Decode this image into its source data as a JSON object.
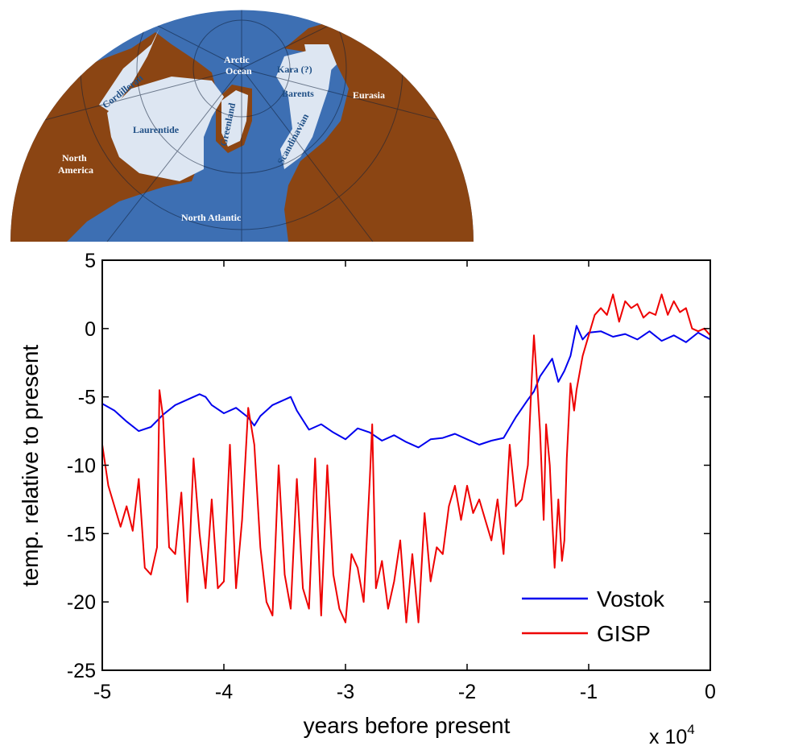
{
  "map": {
    "ocean_color": "#3d6fb3",
    "land_color": "#8b4513",
    "ice_color": "#dde6f2",
    "labels": {
      "arctic": "Arctic",
      "ocean": "Ocean",
      "kara": "Kara (?)",
      "barents": "Barents",
      "eurasia": "Eurasia",
      "cordilleran": "Cordilleran",
      "laurentide": "Laurentide",
      "greenland": "Greenland",
      "scandinavian": "Scandinavian",
      "north": "North",
      "america": "America",
      "north_atlantic": "North Atlantic"
    }
  },
  "chart_data": {
    "type": "line",
    "xlabel": "years before present",
    "ylabel": "temp. relative to present",
    "x_multiplier": "x 10",
    "x_multiplier_exp": "4",
    "xlim": [
      -5,
      0
    ],
    "ylim": [
      -25,
      5
    ],
    "xticks": [
      -5,
      -4,
      -3,
      -2,
      -1,
      0
    ],
    "yticks": [
      5,
      0,
      -5,
      -10,
      -15,
      -20,
      -25
    ],
    "legend_position": "lower-right",
    "series": [
      {
        "name": "Vostok",
        "color": "#0000ee",
        "x": [
          -5.0,
          -4.9,
          -4.8,
          -4.7,
          -4.6,
          -4.5,
          -4.4,
          -4.3,
          -4.2,
          -4.15,
          -4.1,
          -4.0,
          -3.9,
          -3.8,
          -3.75,
          -3.7,
          -3.6,
          -3.5,
          -3.45,
          -3.4,
          -3.3,
          -3.2,
          -3.1,
          -3.0,
          -2.9,
          -2.8,
          -2.7,
          -2.6,
          -2.5,
          -2.4,
          -2.3,
          -2.2,
          -2.1,
          -2.0,
          -1.9,
          -1.8,
          -1.7,
          -1.6,
          -1.5,
          -1.45,
          -1.4,
          -1.3,
          -1.25,
          -1.2,
          -1.15,
          -1.1,
          -1.05,
          -1.0,
          -0.9,
          -0.8,
          -0.7,
          -0.6,
          -0.5,
          -0.4,
          -0.3,
          -0.2,
          -0.1,
          0.0
        ],
        "y": [
          -5.5,
          -6.0,
          -6.8,
          -7.5,
          -7.2,
          -6.3,
          -5.6,
          -5.2,
          -4.8,
          -5.0,
          -5.6,
          -6.2,
          -5.8,
          -6.5,
          -7.1,
          -6.4,
          -5.6,
          -5.2,
          -5.0,
          -6.0,
          -7.4,
          -7.0,
          -7.6,
          -8.1,
          -7.3,
          -7.6,
          -8.2,
          -7.8,
          -8.3,
          -8.7,
          -8.1,
          -8.0,
          -7.7,
          -8.1,
          -8.5,
          -8.2,
          -8.0,
          -6.5,
          -5.2,
          -4.6,
          -3.5,
          -2.2,
          -3.9,
          -3.1,
          -2.0,
          0.2,
          -0.8,
          -0.3,
          -0.2,
          -0.6,
          -0.4,
          -0.8,
          -0.2,
          -0.9,
          -0.5,
          -1.0,
          -0.3,
          -0.8
        ]
      },
      {
        "name": "GISP",
        "color": "#ee0000",
        "x": [
          -5.0,
          -4.95,
          -4.9,
          -4.85,
          -4.8,
          -4.75,
          -4.7,
          -4.65,
          -4.6,
          -4.55,
          -4.53,
          -4.5,
          -4.45,
          -4.4,
          -4.35,
          -4.3,
          -4.25,
          -4.2,
          -4.15,
          -4.1,
          -4.05,
          -4.0,
          -3.95,
          -3.9,
          -3.85,
          -3.8,
          -3.75,
          -3.7,
          -3.65,
          -3.6,
          -3.55,
          -3.5,
          -3.45,
          -3.4,
          -3.35,
          -3.3,
          -3.25,
          -3.2,
          -3.15,
          -3.1,
          -3.05,
          -3.0,
          -2.95,
          -2.9,
          -2.85,
          -2.8,
          -2.78,
          -2.75,
          -2.7,
          -2.65,
          -2.6,
          -2.55,
          -2.5,
          -2.45,
          -2.4,
          -2.35,
          -2.3,
          -2.25,
          -2.2,
          -2.15,
          -2.1,
          -2.05,
          -2.0,
          -1.95,
          -1.9,
          -1.85,
          -1.8,
          -1.75,
          -1.7,
          -1.65,
          -1.6,
          -1.55,
          -1.5,
          -1.47,
          -1.45,
          -1.42,
          -1.4,
          -1.37,
          -1.35,
          -1.32,
          -1.3,
          -1.28,
          -1.25,
          -1.22,
          -1.2,
          -1.18,
          -1.15,
          -1.12,
          -1.1,
          -1.05,
          -1.0,
          -0.95,
          -0.9,
          -0.85,
          -0.8,
          -0.75,
          -0.7,
          -0.65,
          -0.6,
          -0.55,
          -0.5,
          -0.45,
          -0.4,
          -0.35,
          -0.3,
          -0.25,
          -0.2,
          -0.15,
          -0.1,
          -0.05,
          0.0
        ],
        "y": [
          -8.5,
          -11.5,
          -13.0,
          -14.5,
          -13.0,
          -14.8,
          -11.0,
          -17.5,
          -18.0,
          -16.0,
          -4.5,
          -6.5,
          -16.0,
          -16.5,
          -12.0,
          -20.0,
          -9.5,
          -15.0,
          -19.0,
          -12.5,
          -19.0,
          -18.5,
          -8.5,
          -19.0,
          -14.0,
          -5.8,
          -8.5,
          -16.0,
          -20.0,
          -21.0,
          -10.0,
          -18.0,
          -20.5,
          -11.0,
          -19.0,
          -20.5,
          -9.5,
          -21.0,
          -10.0,
          -18.0,
          -20.5,
          -21.5,
          -16.5,
          -17.5,
          -20.0,
          -11.0,
          -7.0,
          -19.0,
          -17.0,
          -20.5,
          -18.5,
          -15.5,
          -21.5,
          -16.5,
          -21.5,
          -13.5,
          -18.5,
          -16.0,
          -16.5,
          -13.0,
          -11.5,
          -14.0,
          -11.5,
          -13.5,
          -12.5,
          -14.0,
          -15.5,
          -12.5,
          -16.5,
          -8.5,
          -13.0,
          -12.5,
          -10.0,
          -4.0,
          -0.5,
          -4.5,
          -7.5,
          -14.0,
          -7.0,
          -10.0,
          -14.0,
          -17.5,
          -12.5,
          -17.0,
          -15.5,
          -9.5,
          -4.0,
          -6.0,
          -4.5,
          -2.0,
          -0.5,
          1.0,
          1.5,
          1.0,
          2.5,
          0.5,
          2.0,
          1.5,
          1.8,
          0.8,
          1.2,
          1.0,
          2.5,
          1.0,
          2.0,
          1.2,
          1.5,
          0.0,
          -0.2,
          0.0,
          -0.5
        ]
      }
    ]
  }
}
